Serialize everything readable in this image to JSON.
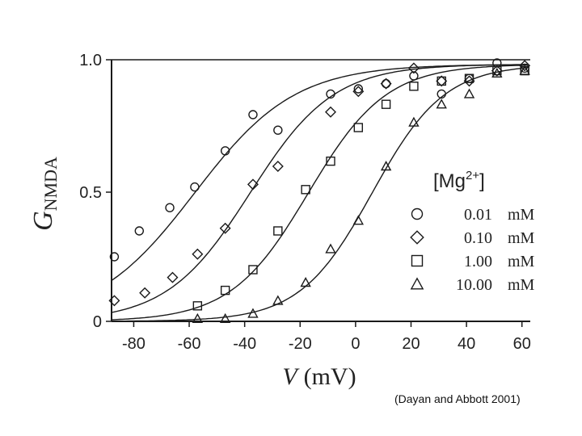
{
  "chart_data": {
    "type": "scatter",
    "title": "",
    "xlabel": {
      "var": "V",
      "unit": "(mV)"
    },
    "ylabel": {
      "var": "G",
      "sub": "NMDA"
    },
    "xlim": [
      -88,
      63
    ],
    "ylim": [
      0,
      1.0
    ],
    "xticks": [
      -80,
      -60,
      -40,
      -20,
      0,
      20,
      40,
      60
    ],
    "yticks": [
      {
        "v": 0,
        "label": "0"
      },
      {
        "v": 0.5,
        "label": "0.5"
      },
      {
        "v": 1.0,
        "label": "1.0"
      }
    ],
    "grid": false,
    "legend": {
      "placement": "right",
      "title_main": "[Mg",
      "title_sup": "2+",
      "title_end": "]"
    },
    "series": [
      {
        "name": "0.01",
        "unit": "mM",
        "marker": "circle",
        "points": [
          [
            -87,
            0.25
          ],
          [
            -78,
            0.35
          ],
          [
            -67,
            0.44
          ],
          [
            -58,
            0.52
          ],
          [
            -47,
            0.66
          ],
          [
            -37,
            0.8
          ],
          [
            -28,
            0.74
          ],
          [
            -9,
            0.88
          ],
          [
            1,
            0.9
          ],
          [
            11,
            0.92
          ],
          [
            21,
            0.95
          ],
          [
            31,
            0.88
          ],
          [
            41,
            0.94
          ],
          [
            51,
            1.0
          ],
          [
            61,
            0.98
          ]
        ]
      },
      {
        "name": "0.10",
        "unit": "mM",
        "marker": "diamond",
        "points": [
          [
            -87,
            0.08
          ],
          [
            -76,
            0.11
          ],
          [
            -66,
            0.17
          ],
          [
            -57,
            0.26
          ],
          [
            -47,
            0.36
          ],
          [
            -37,
            0.53
          ],
          [
            -28,
            0.6
          ],
          [
            -9,
            0.81
          ],
          [
            1,
            0.89
          ],
          [
            11,
            0.92
          ],
          [
            21,
            0.98
          ],
          [
            31,
            0.93
          ],
          [
            41,
            0.93
          ],
          [
            51,
            0.97
          ],
          [
            61,
            0.99
          ]
        ]
      },
      {
        "name": "1.00",
        "unit": "mM",
        "marker": "square",
        "points": [
          [
            -57,
            0.06
          ],
          [
            -47,
            0.12
          ],
          [
            -37,
            0.2
          ],
          [
            -28,
            0.35
          ],
          [
            -18,
            0.51
          ],
          [
            -9,
            0.62
          ],
          [
            1,
            0.75
          ],
          [
            11,
            0.84
          ],
          [
            21,
            0.91
          ],
          [
            31,
            0.93
          ],
          [
            41,
            0.94
          ],
          [
            51,
            0.97
          ],
          [
            61,
            0.97
          ]
        ]
      },
      {
        "name": "10.00",
        "unit": "mM",
        "marker": "triangle",
        "points": [
          [
            -57,
            0.01
          ],
          [
            -47,
            0.01
          ],
          [
            -37,
            0.03
          ],
          [
            -28,
            0.08
          ],
          [
            -18,
            0.15
          ],
          [
            -9,
            0.28
          ],
          [
            1,
            0.39
          ],
          [
            11,
            0.6
          ],
          [
            21,
            0.77
          ],
          [
            31,
            0.84
          ],
          [
            41,
            0.88
          ],
          [
            51,
            0.96
          ],
          [
            61,
            0.97
          ]
        ]
      }
    ]
  },
  "citation": "(Dayan and Abbott 2001)"
}
